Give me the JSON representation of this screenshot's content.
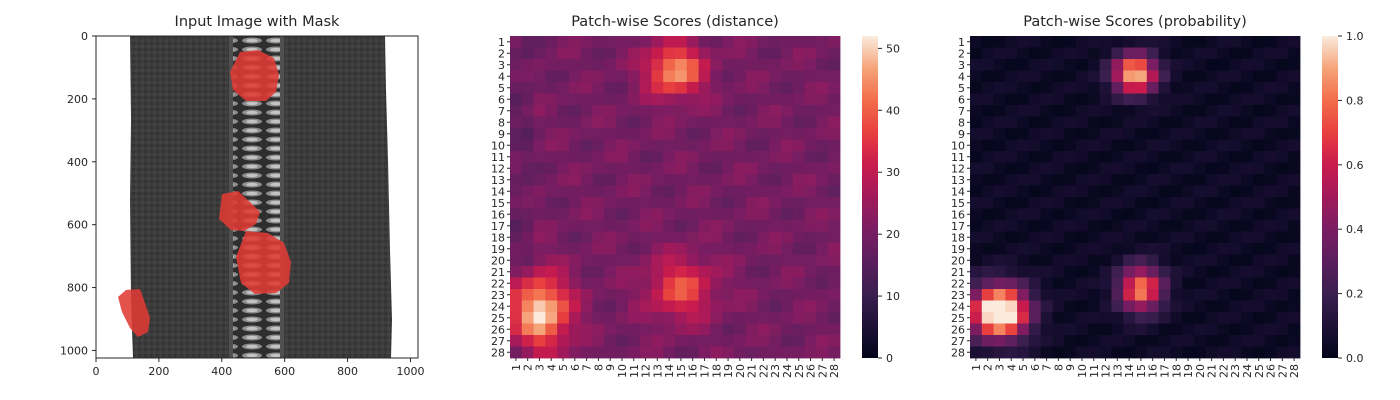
{
  "panels": [
    {
      "title": "Input Image with Mask",
      "x_ticks": [
        "0",
        "200",
        "400",
        "600",
        "800",
        "1000"
      ],
      "y_ticks": [
        "0",
        "200",
        "400",
        "600",
        "800",
        "1000"
      ]
    },
    {
      "title": "Patch-wise Scores (distance)",
      "colorbar_ticks": [
        "0",
        "10",
        "20",
        "30",
        "40",
        "50"
      ]
    },
    {
      "title": "Patch-wise Scores (probability)",
      "colorbar_ticks": [
        "0.0",
        "0.2",
        "0.4",
        "0.6",
        "0.8",
        "1.0"
      ]
    }
  ],
  "chart_data": [
    {
      "type": "image",
      "title": "Input Image with Mask",
      "xlim": [
        0,
        1024
      ],
      "ylim": [
        1024,
        0
      ],
      "x_ticks": [
        0,
        200,
        400,
        600,
        800,
        1000
      ],
      "y_ticks": [
        0,
        200,
        400,
        600,
        800,
        1000
      ],
      "colors": {
        "fabric": "#3a3a3a",
        "mask": "#e03a36"
      }
    },
    {
      "type": "heatmap",
      "title": "Patch-wise Scores (distance)",
      "rows": 28,
      "cols": 28,
      "value_range": [
        0,
        52
      ],
      "colorbar_ticks": [
        0,
        10,
        20,
        30,
        40,
        50
      ],
      "colormap": "rocket",
      "regions": [
        {
          "name": "top",
          "center": [
            3.5,
            14.5
          ],
          "peak": 46
        },
        {
          "name": "mid-right",
          "center": [
            22.5,
            15
          ],
          "peak": 38
        },
        {
          "name": "bottom-left",
          "center": [
            24.5,
            3
          ],
          "peak": 52
        }
      ]
    },
    {
      "type": "heatmap",
      "title": "Patch-wise Scores (probability)",
      "rows": 28,
      "cols": 28,
      "value_range": [
        0,
        1
      ],
      "colorbar_ticks": [
        0.0,
        0.2,
        0.4,
        0.6,
        0.8,
        1.0
      ],
      "colormap": "rocket",
      "regions": [
        {
          "name": "top",
          "center": [
            3.8,
            14.5
          ],
          "peak": 0.95
        },
        {
          "name": "mid-right",
          "center": [
            22.5,
            15
          ],
          "peak": 0.8
        },
        {
          "name": "bottom-left",
          "center": [
            24.5,
            3
          ],
          "peak": 1.0
        }
      ]
    }
  ]
}
